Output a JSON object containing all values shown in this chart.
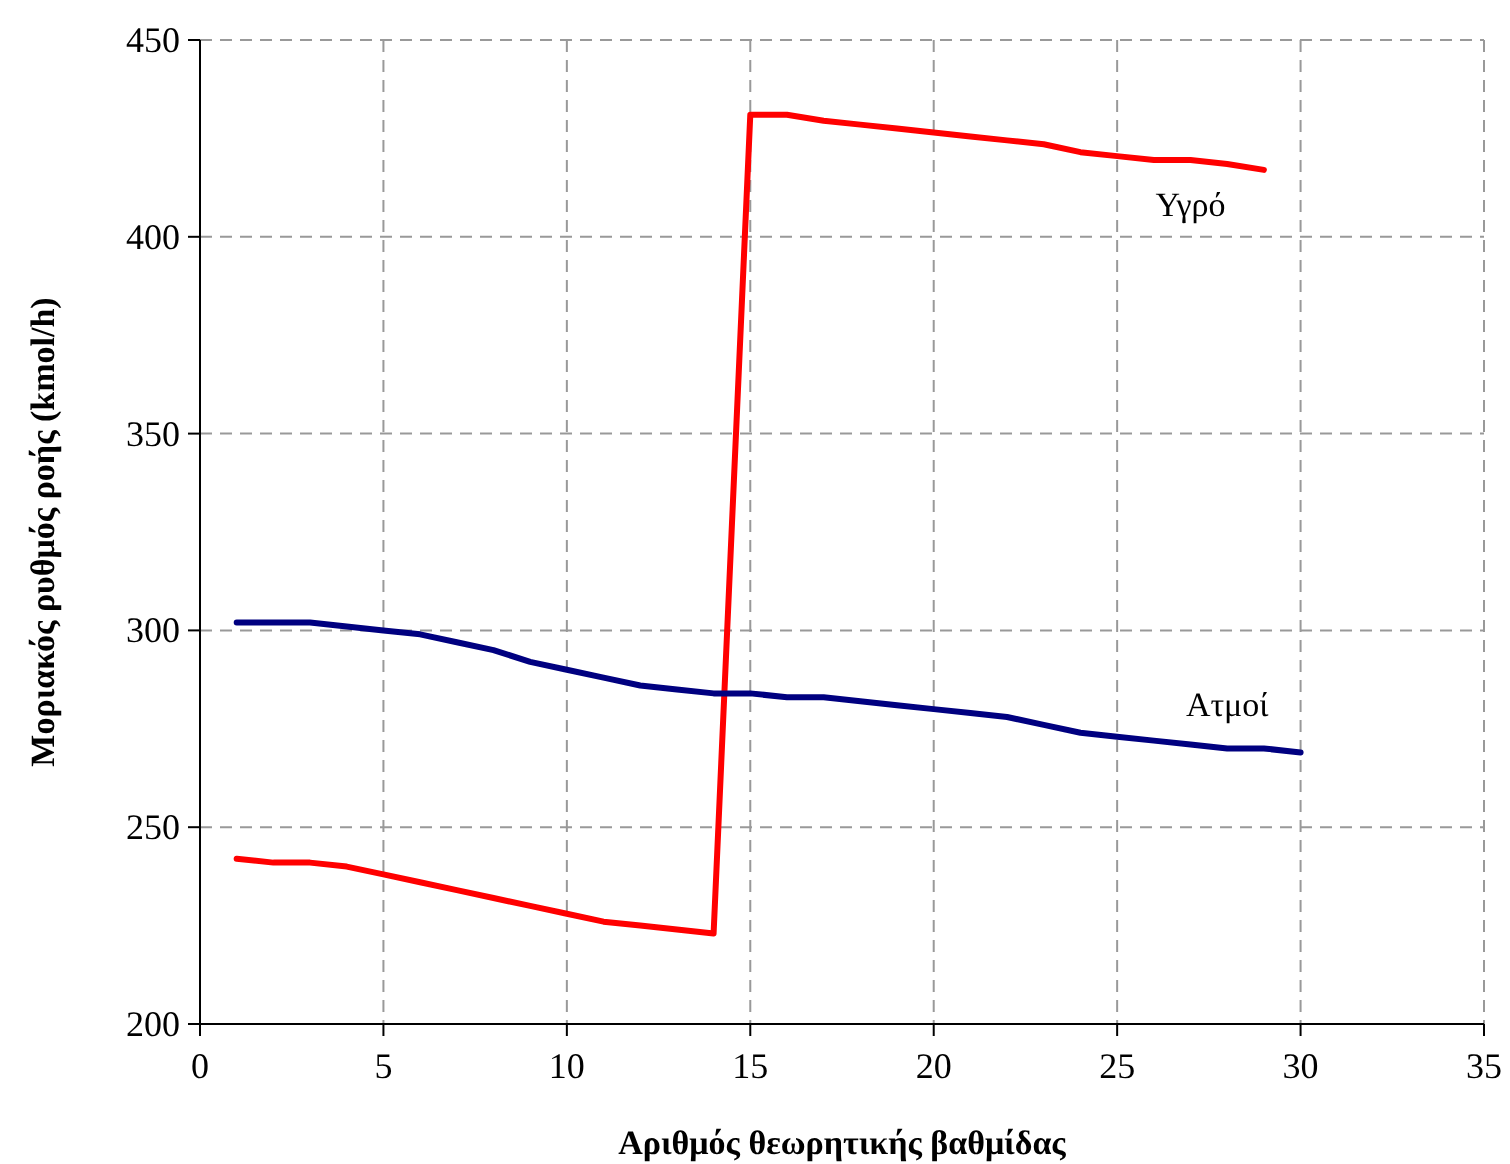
{
  "chart_data": {
    "type": "line",
    "xlabel": "Αριθμός θεωρητικής βαθμίδας",
    "ylabel": "Μοριακός ρυθμός ροής (kmol/h)",
    "xlim": [
      0,
      35
    ],
    "xticks": [
      0,
      5,
      10,
      15,
      20,
      25,
      30,
      35
    ],
    "ylim": [
      200,
      450
    ],
    "yticks": [
      200,
      250,
      300,
      350,
      400,
      450
    ],
    "grid": true,
    "legend": false,
    "marker": "none",
    "line_style": "solid",
    "series": [
      {
        "name": "Υγρό",
        "color": "#ff0000",
        "x": [
          1,
          2,
          3,
          4,
          5,
          6,
          7,
          8,
          9,
          10,
          11,
          12,
          13,
          14,
          15,
          16,
          17,
          18,
          19,
          20,
          21,
          22,
          23,
          24,
          25,
          26,
          27,
          28,
          29
        ],
        "values": [
          242,
          241,
          241,
          240,
          238,
          236,
          234,
          232,
          230,
          228,
          226,
          225,
          224,
          223,
          431,
          431,
          429.5,
          428.5,
          427.5,
          426.5,
          425.5,
          424.5,
          423.5,
          421.5,
          420.5,
          419.5,
          419.5,
          418.5,
          417
        ]
      },
      {
        "name": "Ατμοί",
        "color": "#000080",
        "x": [
          1,
          2,
          3,
          4,
          5,
          6,
          7,
          8,
          9,
          10,
          11,
          12,
          13,
          14,
          15,
          16,
          17,
          18,
          19,
          20,
          21,
          22,
          23,
          24,
          25,
          26,
          27,
          28,
          29,
          30
        ],
        "values": [
          302,
          302,
          302,
          301,
          300,
          299,
          297,
          295,
          292,
          290,
          288,
          286,
          285,
          284,
          284,
          283,
          283,
          282,
          281,
          280,
          279,
          278,
          276,
          274,
          273,
          272,
          271,
          270,
          270,
          269
        ]
      }
    ]
  }
}
